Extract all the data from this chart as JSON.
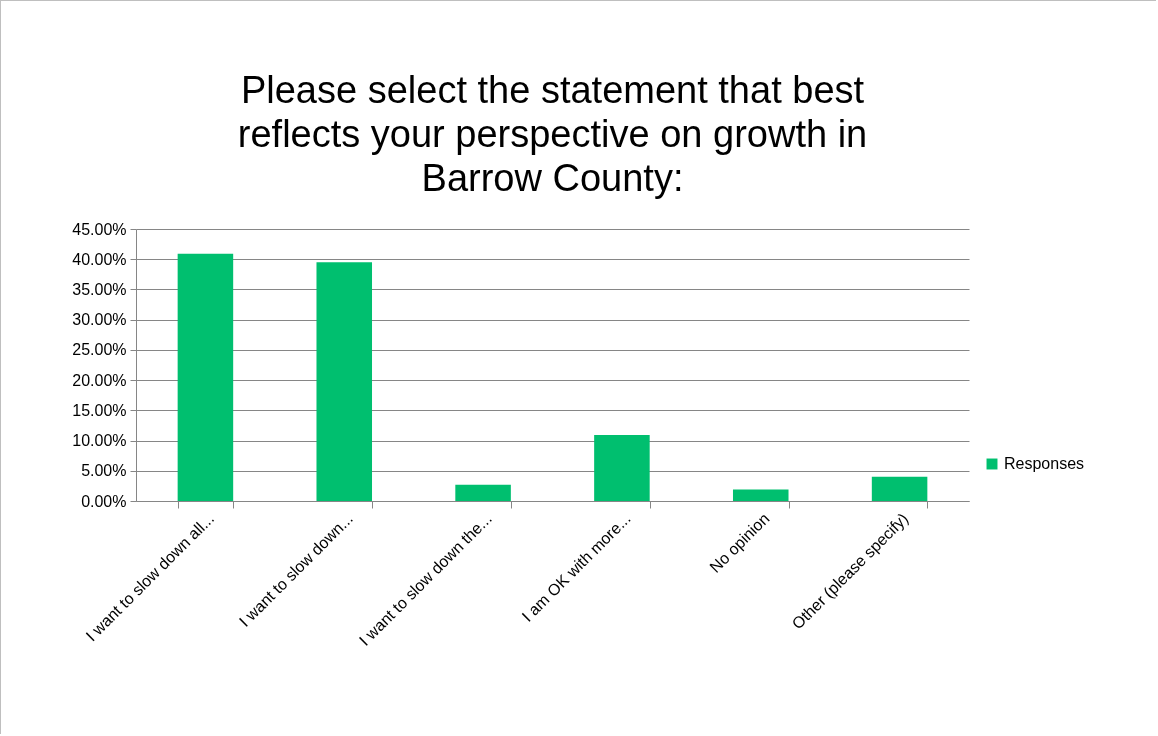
{
  "chart_data": {
    "type": "bar",
    "title": "Please select the statement that best reflects your perspective on growth in Barrow County:",
    "categories": [
      "I want to slow down all...",
      "I want to slow down...",
      "I want to slow down the...",
      "I am OK with more...",
      "No opinion",
      "Other (please specify)"
    ],
    "series": [
      {
        "name": "Responses",
        "color": "#00bf6f",
        "values": [
          40.9,
          39.5,
          2.7,
          10.9,
          1.9,
          4.0
        ]
      }
    ],
    "ylim": [
      0,
      45
    ],
    "yticks": [
      {
        "value": 0,
        "label": "0.00%"
      },
      {
        "value": 5,
        "label": "5.00%"
      },
      {
        "value": 10,
        "label": "10.00%"
      },
      {
        "value": 15,
        "label": "15.00%"
      },
      {
        "value": 20,
        "label": "20.00%"
      },
      {
        "value": 25,
        "label": "25.00%"
      },
      {
        "value": 30,
        "label": "30.00%"
      },
      {
        "value": 35,
        "label": "35.00%"
      },
      {
        "value": 40,
        "label": "40.00%"
      },
      {
        "value": 45,
        "label": "45.00%"
      }
    ],
    "grid": "y",
    "legend": "right"
  }
}
